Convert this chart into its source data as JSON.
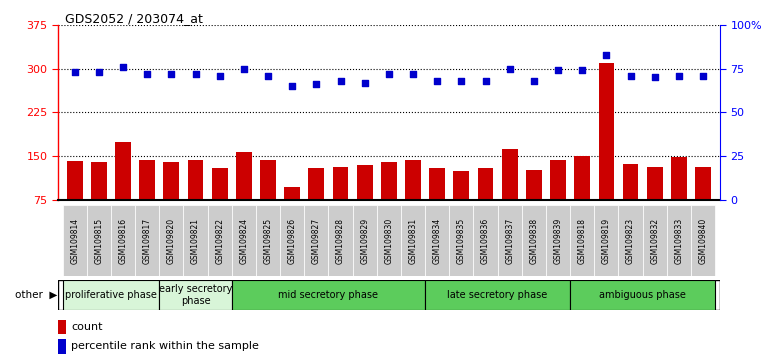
{
  "title": "GDS2052 / 203074_at",
  "samples": [
    "GSM109814",
    "GSM109815",
    "GSM109816",
    "GSM109817",
    "GSM109820",
    "GSM109821",
    "GSM109822",
    "GSM109824",
    "GSM109825",
    "GSM109826",
    "GSM109827",
    "GSM109828",
    "GSM109829",
    "GSM109830",
    "GSM109831",
    "GSM109834",
    "GSM109835",
    "GSM109836",
    "GSM109837",
    "GSM109838",
    "GSM109839",
    "GSM109818",
    "GSM109819",
    "GSM109823",
    "GSM109832",
    "GSM109833",
    "GSM109840"
  ],
  "counts": [
    142,
    140,
    175,
    143,
    140,
    144,
    130,
    157,
    143,
    98,
    130,
    132,
    135,
    140,
    143,
    130,
    125,
    130,
    163,
    127,
    143,
    150,
    310,
    137,
    132,
    148,
    132
  ],
  "percentiles": [
    73,
    73,
    76,
    72,
    72,
    72,
    71,
    75,
    71,
    65,
    66,
    68,
    67,
    72,
    72,
    68,
    68,
    68,
    75,
    68,
    74,
    74,
    83,
    71,
    70,
    71,
    71
  ],
  "ylim_left": [
    75,
    375
  ],
  "ylim_right": [
    0,
    100
  ],
  "yticks_left": [
    75,
    150,
    225,
    300,
    375
  ],
  "yticks_right": [
    0,
    25,
    50,
    75,
    100
  ],
  "ytick_labels_right": [
    "0",
    "25",
    "50",
    "75",
    "100%"
  ],
  "phases": [
    {
      "label": "proliferative phase",
      "start": 0,
      "end": 4,
      "color": "#d8f5d8"
    },
    {
      "label": "early secretory\nphase",
      "start": 4,
      "end": 7,
      "color": "#d8f5d8"
    },
    {
      "label": "mid secretory phase",
      "start": 7,
      "end": 15,
      "color": "#5ccc5c"
    },
    {
      "label": "late secretory phase",
      "start": 15,
      "end": 21,
      "color": "#5ccc5c"
    },
    {
      "label": "ambiguous phase",
      "start": 21,
      "end": 27,
      "color": "#5ccc5c"
    }
  ],
  "bar_color": "#cc0000",
  "scatter_color": "#0000cc",
  "plot_bg_color": "#ffffff",
  "xtick_bg_color": "#cccccc",
  "other_label": "other",
  "legend_count": "count",
  "legend_pct": "percentile rank within the sample"
}
